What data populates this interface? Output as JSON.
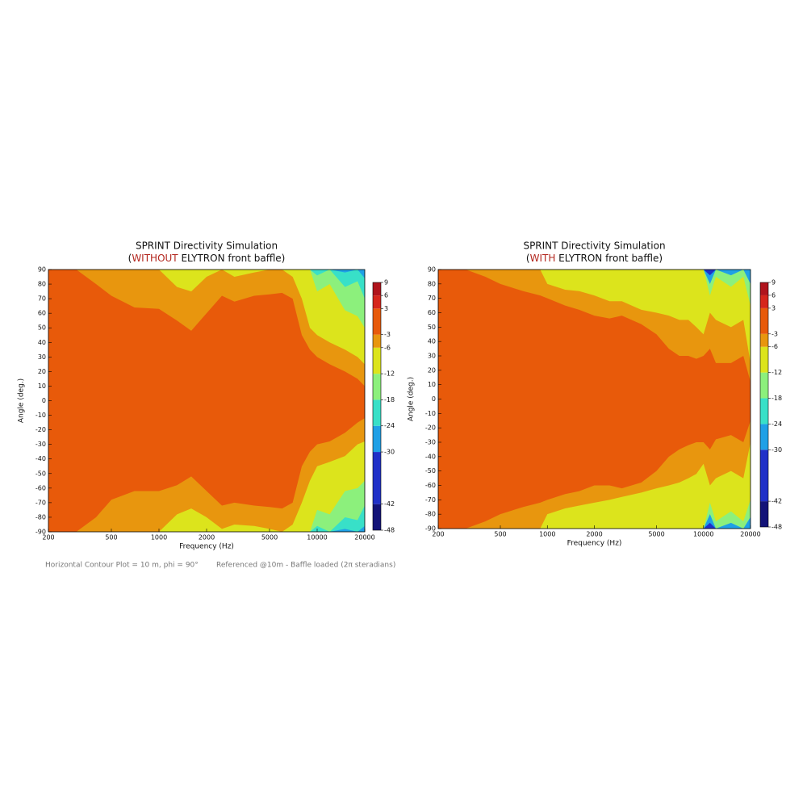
{
  "chart_data": [
    {
      "type": "contour",
      "title": "SPRINT Directivity Simulation",
      "subtitle_parts": [
        "(",
        "WITHOUT",
        " ELYTRON front baffle)"
      ],
      "subtitle_highlight": 1,
      "highlight_color": "#b3261e",
      "xlabel": "Frequency (Hz)",
      "ylabel": "Angle (deg.)",
      "xscale": "log",
      "xlim": [
        200,
        20000
      ],
      "xticks": [
        200,
        500,
        1000,
        2000,
        5000,
        10000,
        20000
      ],
      "ylim": [
        -90,
        90
      ],
      "yticks": [
        -90,
        -80,
        -70,
        -60,
        -50,
        -40,
        -30,
        -20,
        -10,
        0,
        10,
        20,
        30,
        40,
        50,
        60,
        70,
        80,
        90
      ],
      "levels": [
        -48,
        -42,
        -30,
        -24,
        -18,
        -12,
        -6,
        -3,
        3,
        6,
        9
      ],
      "colors": [
        "#131378",
        "#2030c8",
        "#1fa0e6",
        "#38e0c8",
        "#8cf07c",
        "#dce41c",
        "#e8960e",
        "#e85a0a",
        "#d6261c",
        "#b0141c"
      ],
      "x": [
        200,
        300,
        400,
        500,
        700,
        1000,
        1300,
        1600,
        2000,
        2500,
        3000,
        4000,
        5000,
        6000,
        7000,
        8000,
        9000,
        10000,
        12000,
        15000,
        18000,
        20000
      ],
      "contours": [
        {
          "level": -24,
          "upper": [
            90,
            90,
            90,
            90,
            90,
            90,
            90,
            90,
            90,
            90,
            90,
            90,
            90,
            90,
            90,
            90,
            90,
            90,
            90,
            88,
            90,
            84
          ],
          "lower": [
            -90,
            -90,
            -90,
            -90,
            -90,
            -90,
            -90,
            -90,
            -90,
            -90,
            -90,
            -90,
            -90,
            -90,
            -90,
            -90,
            -90,
            -90,
            -90,
            -88,
            -90,
            -86
          ]
        },
        {
          "level": -18,
          "upper": [
            90,
            90,
            90,
            90,
            90,
            90,
            90,
            90,
            90,
            90,
            90,
            90,
            90,
            90,
            90,
            90,
            90,
            86,
            90,
            78,
            82,
            70
          ],
          "lower": [
            -90,
            -90,
            -90,
            -90,
            -90,
            -90,
            -90,
            -90,
            -90,
            -90,
            -90,
            -90,
            -90,
            -90,
            -90,
            -90,
            -90,
            -86,
            -90,
            -80,
            -82,
            -72
          ]
        },
        {
          "level": -12,
          "upper": [
            90,
            90,
            90,
            90,
            90,
            90,
            90,
            90,
            90,
            90,
            90,
            90,
            90,
            90,
            90,
            90,
            90,
            75,
            80,
            62,
            58,
            50
          ],
          "lower": [
            -90,
            -90,
            -90,
            -90,
            -90,
            -90,
            -90,
            -90,
            -90,
            -90,
            -90,
            -90,
            -90,
            -90,
            -90,
            -90,
            -90,
            -75,
            -78,
            -62,
            -60,
            -55
          ]
        },
        {
          "level": -6,
          "upper": [
            90,
            90,
            90,
            90,
            90,
            90,
            78,
            75,
            85,
            90,
            85,
            88,
            90,
            90,
            85,
            70,
            50,
            45,
            40,
            35,
            30,
            25
          ],
          "lower": [
            -90,
            -90,
            -90,
            -90,
            -90,
            -90,
            -78,
            -74,
            -80,
            -88,
            -85,
            -86,
            -88,
            -90,
            -85,
            -70,
            -55,
            -45,
            -42,
            -38,
            -30,
            -28
          ]
        },
        {
          "level": -3,
          "upper": [
            90,
            90,
            80,
            72,
            64,
            63,
            55,
            48,
            60,
            72,
            68,
            72,
            73,
            74,
            70,
            45,
            35,
            30,
            25,
            20,
            15,
            10
          ],
          "lower": [
            -90,
            -90,
            -80,
            -68,
            -62,
            -62,
            -58,
            -52,
            -62,
            -72,
            -70,
            -72,
            -73,
            -74,
            -70,
            -45,
            -35,
            -30,
            -28,
            -22,
            -15,
            -12
          ]
        }
      ]
    },
    {
      "type": "contour",
      "title": "SPRINT Directivity Simulation",
      "subtitle_parts": [
        "(",
        "WITH",
        " ELYTRON front baffle)"
      ],
      "subtitle_highlight": 1,
      "highlight_color": "#b3261e",
      "xlabel": "Frequency (Hz)",
      "ylabel": "Angle (deg.)",
      "xscale": "log",
      "xlim": [
        200,
        20000
      ],
      "xticks": [
        200,
        500,
        1000,
        2000,
        5000,
        10000,
        20000
      ],
      "ylim": [
        -90,
        90
      ],
      "yticks": [
        -90,
        -80,
        -70,
        -60,
        -50,
        -40,
        -30,
        -20,
        -10,
        0,
        10,
        20,
        30,
        40,
        50,
        60,
        70,
        80,
        90
      ],
      "levels": [
        -48,
        -42,
        -30,
        -24,
        -18,
        -12,
        -6,
        -3,
        3,
        6,
        9
      ],
      "colors": [
        "#131378",
        "#2030c8",
        "#1fa0e6",
        "#38e0c8",
        "#8cf07c",
        "#dce41c",
        "#e8960e",
        "#e85a0a",
        "#d6261c",
        "#b0141c"
      ],
      "x": [
        200,
        300,
        400,
        500,
        700,
        900,
        1000,
        1300,
        1600,
        2000,
        2500,
        3000,
        4000,
        5000,
        6000,
        7000,
        8000,
        9000,
        10000,
        11000,
        12000,
        15000,
        18000,
        20000
      ],
      "contours": [
        {
          "level": -30,
          "upper": [
            90,
            90,
            90,
            90,
            90,
            90,
            90,
            90,
            90,
            90,
            90,
            90,
            90,
            90,
            90,
            90,
            90,
            90,
            90,
            86,
            90,
            90,
            90,
            90
          ],
          "lower": [
            -90,
            -90,
            -90,
            -90,
            -90,
            -90,
            -90,
            -90,
            -90,
            -90,
            -90,
            -90,
            -90,
            -90,
            -90,
            -90,
            -90,
            -90,
            -90,
            -86,
            -90,
            -90,
            -90,
            -90
          ]
        },
        {
          "level": -18,
          "upper": [
            90,
            90,
            90,
            90,
            90,
            90,
            90,
            90,
            90,
            90,
            90,
            90,
            90,
            90,
            90,
            90,
            90,
            90,
            90,
            80,
            90,
            86,
            90,
            80
          ],
          "lower": [
            -90,
            -90,
            -90,
            -90,
            -90,
            -90,
            -90,
            -90,
            -90,
            -90,
            -90,
            -90,
            -90,
            -90,
            -90,
            -90,
            -90,
            -90,
            -90,
            -80,
            -90,
            -86,
            -90,
            -82
          ]
        },
        {
          "level": -12,
          "upper": [
            90,
            90,
            90,
            90,
            90,
            90,
            90,
            90,
            90,
            90,
            90,
            90,
            90,
            90,
            90,
            90,
            90,
            90,
            90,
            72,
            85,
            78,
            85,
            65
          ],
          "lower": [
            -90,
            -90,
            -90,
            -90,
            -90,
            -90,
            -90,
            -90,
            -90,
            -90,
            -90,
            -90,
            -90,
            -90,
            -90,
            -90,
            -90,
            -90,
            -90,
            -72,
            -85,
            -78,
            -85,
            -70
          ]
        },
        {
          "level": -6,
          "upper": [
            90,
            90,
            90,
            90,
            90,
            90,
            80,
            76,
            75,
            72,
            68,
            68,
            62,
            60,
            58,
            55,
            55,
            50,
            45,
            60,
            55,
            50,
            55,
            25
          ],
          "lower": [
            -90,
            -90,
            -90,
            -90,
            -90,
            -90,
            -80,
            -76,
            -74,
            -72,
            -70,
            -68,
            -65,
            -62,
            -60,
            -58,
            -55,
            -52,
            -45,
            -60,
            -55,
            -50,
            -55,
            -30
          ]
        },
        {
          "level": -3,
          "upper": [
            90,
            90,
            85,
            80,
            75,
            72,
            70,
            65,
            62,
            58,
            56,
            58,
            52,
            45,
            35,
            30,
            30,
            28,
            30,
            35,
            25,
            25,
            30,
            12
          ],
          "lower": [
            -90,
            -90,
            -85,
            -80,
            -75,
            -72,
            -70,
            -66,
            -64,
            -60,
            -60,
            -62,
            -58,
            -50,
            -40,
            -35,
            -32,
            -30,
            -30,
            -35,
            -28,
            -25,
            -30,
            -15
          ]
        }
      ]
    }
  ],
  "notes": [
    "Horizontal Contour Plot = 10 m, phi = 90°",
    "Referenced @10m - Baffle loaded (2π steradians)"
  ]
}
